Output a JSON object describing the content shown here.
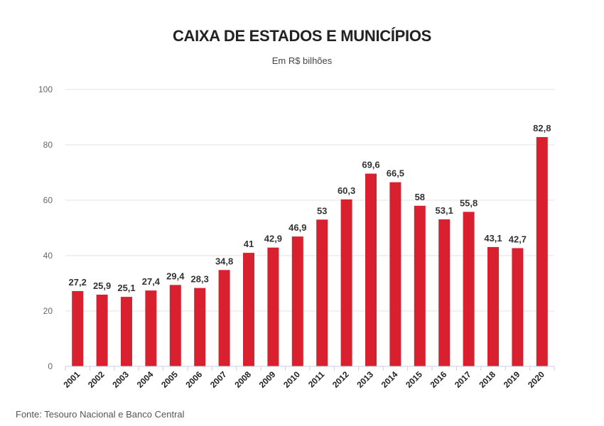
{
  "header": {
    "title": "CAIXA DE ESTADOS E MUNICÍPIOS",
    "subtitle": "Em R$ bilhões"
  },
  "footer": {
    "source": "Fonte: Tesouro Nacional e Banco Central"
  },
  "colors": {
    "bar": "#d8202f",
    "grid": "#e3e3e3",
    "axis": "#c9cfe0"
  },
  "chart_data": {
    "type": "bar",
    "title": "CAIXA DE ESTADOS E MUNICÍPIOS",
    "subtitle": "Em R$ bilhões",
    "categories": [
      "2001",
      "2002",
      "2003",
      "2004",
      "2005",
      "2006",
      "2007",
      "2008",
      "2009",
      "2010",
      "2011",
      "2012",
      "2013",
      "2014",
      "2015",
      "2016",
      "2017",
      "2018",
      "2019",
      "2020"
    ],
    "values": [
      27.2,
      25.9,
      25.1,
      27.4,
      29.4,
      28.3,
      34.8,
      41,
      42.9,
      46.9,
      53,
      60.3,
      69.6,
      66.5,
      58,
      53.1,
      55.8,
      43.1,
      42.7,
      82.8
    ],
    "data_labels": [
      "27,2",
      "25,9",
      "25,1",
      "27,4",
      "29,4",
      "28,3",
      "34,8",
      "41",
      "42,9",
      "46,9",
      "53",
      "60,3",
      "69,6",
      "66,5",
      "58",
      "53,1",
      "55,8",
      "43,1",
      "42,7",
      "82,8"
    ],
    "yticks": [
      0,
      20,
      40,
      60,
      80,
      100
    ],
    "ylim": [
      0,
      100
    ],
    "xlabel": "",
    "ylabel": "",
    "grid": true,
    "legend": "none"
  }
}
